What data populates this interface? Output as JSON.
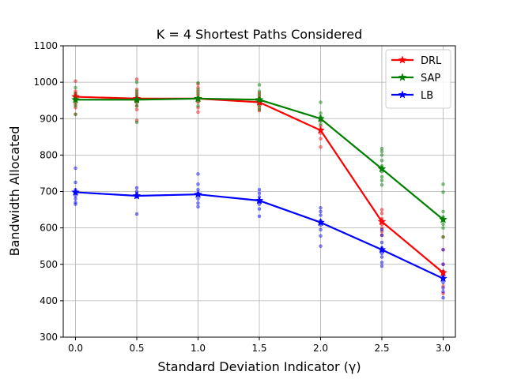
{
  "chart_data": {
    "type": "line",
    "title": "K = 4 Shortest Paths Considered",
    "xlabel": "Standard Deviation Indicator (γ)",
    "ylabel": "Bandwidth Allocated",
    "xlim": [
      -0.1,
      3.1
    ],
    "ylim": [
      300,
      1100
    ],
    "x_ticks": [
      0.0,
      0.5,
      1.0,
      1.5,
      2.0,
      2.5,
      3.0
    ],
    "x_tick_labels": [
      "0.0",
      "0.5",
      "1.0",
      "1.5",
      "2.0",
      "2.5",
      "3.0"
    ],
    "y_ticks": [
      300,
      400,
      500,
      600,
      700,
      800,
      900,
      1000,
      1100
    ],
    "y_tick_labels": [
      "300",
      "400",
      "500",
      "600",
      "700",
      "800",
      "900",
      "1000",
      "1100"
    ],
    "grid": true,
    "legend_position": "top-right",
    "x": [
      0.0,
      0.5,
      1.0,
      1.5,
      2.0,
      2.5,
      3.0
    ],
    "series": [
      {
        "name": "DRL",
        "color": "#ff0000",
        "values": [
          960,
          955,
          955,
          945,
          868,
          617,
          477
        ],
        "samples": [
          [
            1003,
            975,
            970,
            965,
            958,
            950,
            940,
            930,
            912
          ],
          [
            1008,
            980,
            970,
            960,
            950,
            945,
            935,
            925,
            895
          ],
          [
            995,
            985,
            975,
            965,
            955,
            945,
            930,
            918
          ],
          [
            970,
            960,
            950,
            945,
            940,
            930,
            922
          ],
          [
            895,
            880,
            870,
            860,
            845,
            822
          ],
          [
            650,
            640,
            625,
            610,
            600,
            590,
            580
          ],
          [
            575,
            540,
            500,
            480,
            470,
            460,
            440,
            420
          ]
        ]
      },
      {
        "name": "SAP",
        "color": "#008000",
        "values": [
          952,
          952,
          955,
          952,
          900,
          762,
          623
        ],
        "samples": [
          [
            985,
            968,
            960,
            955,
            945,
            935,
            912
          ],
          [
            1000,
            975,
            965,
            955,
            945,
            935,
            890
          ],
          [
            998,
            980,
            970,
            958,
            948,
            935
          ],
          [
            993,
            975,
            965,
            955,
            945,
            935,
            925
          ],
          [
            945,
            915,
            905,
            895,
            885
          ],
          [
            818,
            810,
            800,
            785,
            770,
            755,
            740,
            730,
            718
          ],
          [
            720,
            698,
            645,
            630,
            620,
            610,
            600,
            575
          ]
        ]
      },
      {
        "name": "LB",
        "color": "#0000ff",
        "values": [
          698,
          688,
          692,
          675,
          615,
          540,
          461
        ],
        "samples": [
          [
            764,
            725,
            705,
            695,
            688,
            680,
            670,
            665
          ],
          [
            710,
            700,
            695,
            690,
            685,
            638
          ],
          [
            748,
            720,
            705,
            695,
            680,
            668,
            658
          ],
          [
            705,
            695,
            685,
            672,
            665,
            652,
            632
          ],
          [
            655,
            645,
            635,
            620,
            608,
            595,
            578,
            550
          ],
          [
            595,
            580,
            560,
            545,
            530,
            520,
            505,
            495
          ],
          [
            540,
            500,
            480,
            470,
            460,
            450,
            435,
            425,
            408
          ]
        ]
      }
    ]
  }
}
